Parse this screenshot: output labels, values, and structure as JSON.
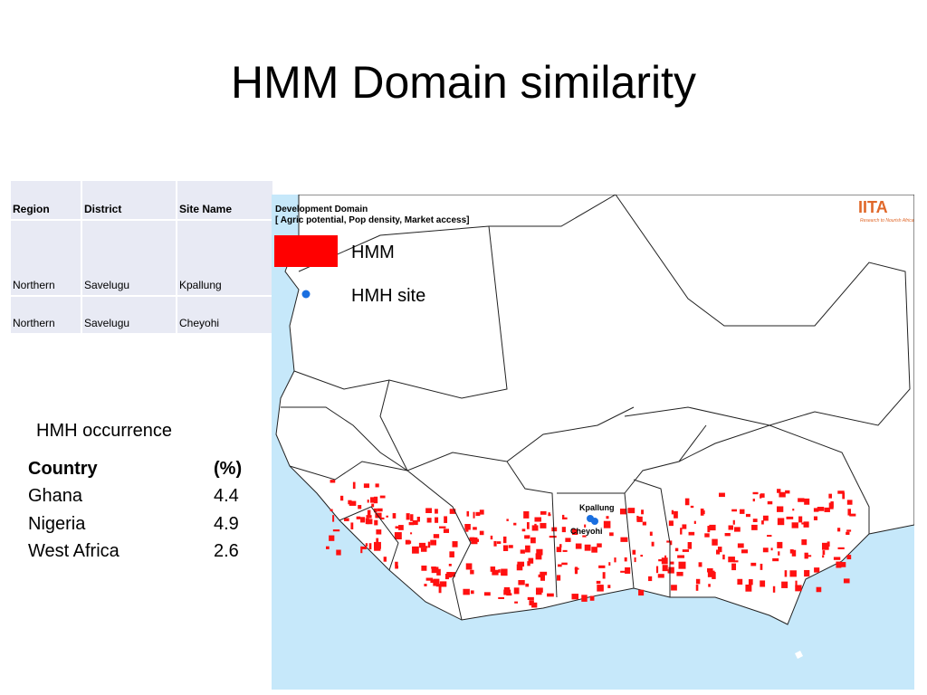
{
  "header": {
    "title": "HMM Domain similarity"
  },
  "table": {
    "columns": [
      "Region",
      "District",
      "Site Name"
    ],
    "rows": [
      [
        "Northern",
        "Savelugu",
        "Kpallung"
      ],
      [
        "Northern",
        "Savelugu",
        "Cheyohi"
      ]
    ]
  },
  "occurrence": {
    "title": "HMH occurrence",
    "columns": [
      "Country",
      "(%)"
    ],
    "rows": [
      [
        "Ghana",
        "4.4"
      ],
      [
        "Nigeria",
        "4.9"
      ],
      [
        "West Africa",
        "2.6"
      ]
    ]
  },
  "map": {
    "heading": "Development Domain",
    "subheading": "[ Agric potential, Pop density, Market access]",
    "legend": [
      "HMM",
      "HMH site"
    ],
    "sites": [
      "Kpallung",
      "Cheyohi"
    ],
    "logo": "IITA",
    "logo_tagline": "Research to Nourish Africa"
  }
}
